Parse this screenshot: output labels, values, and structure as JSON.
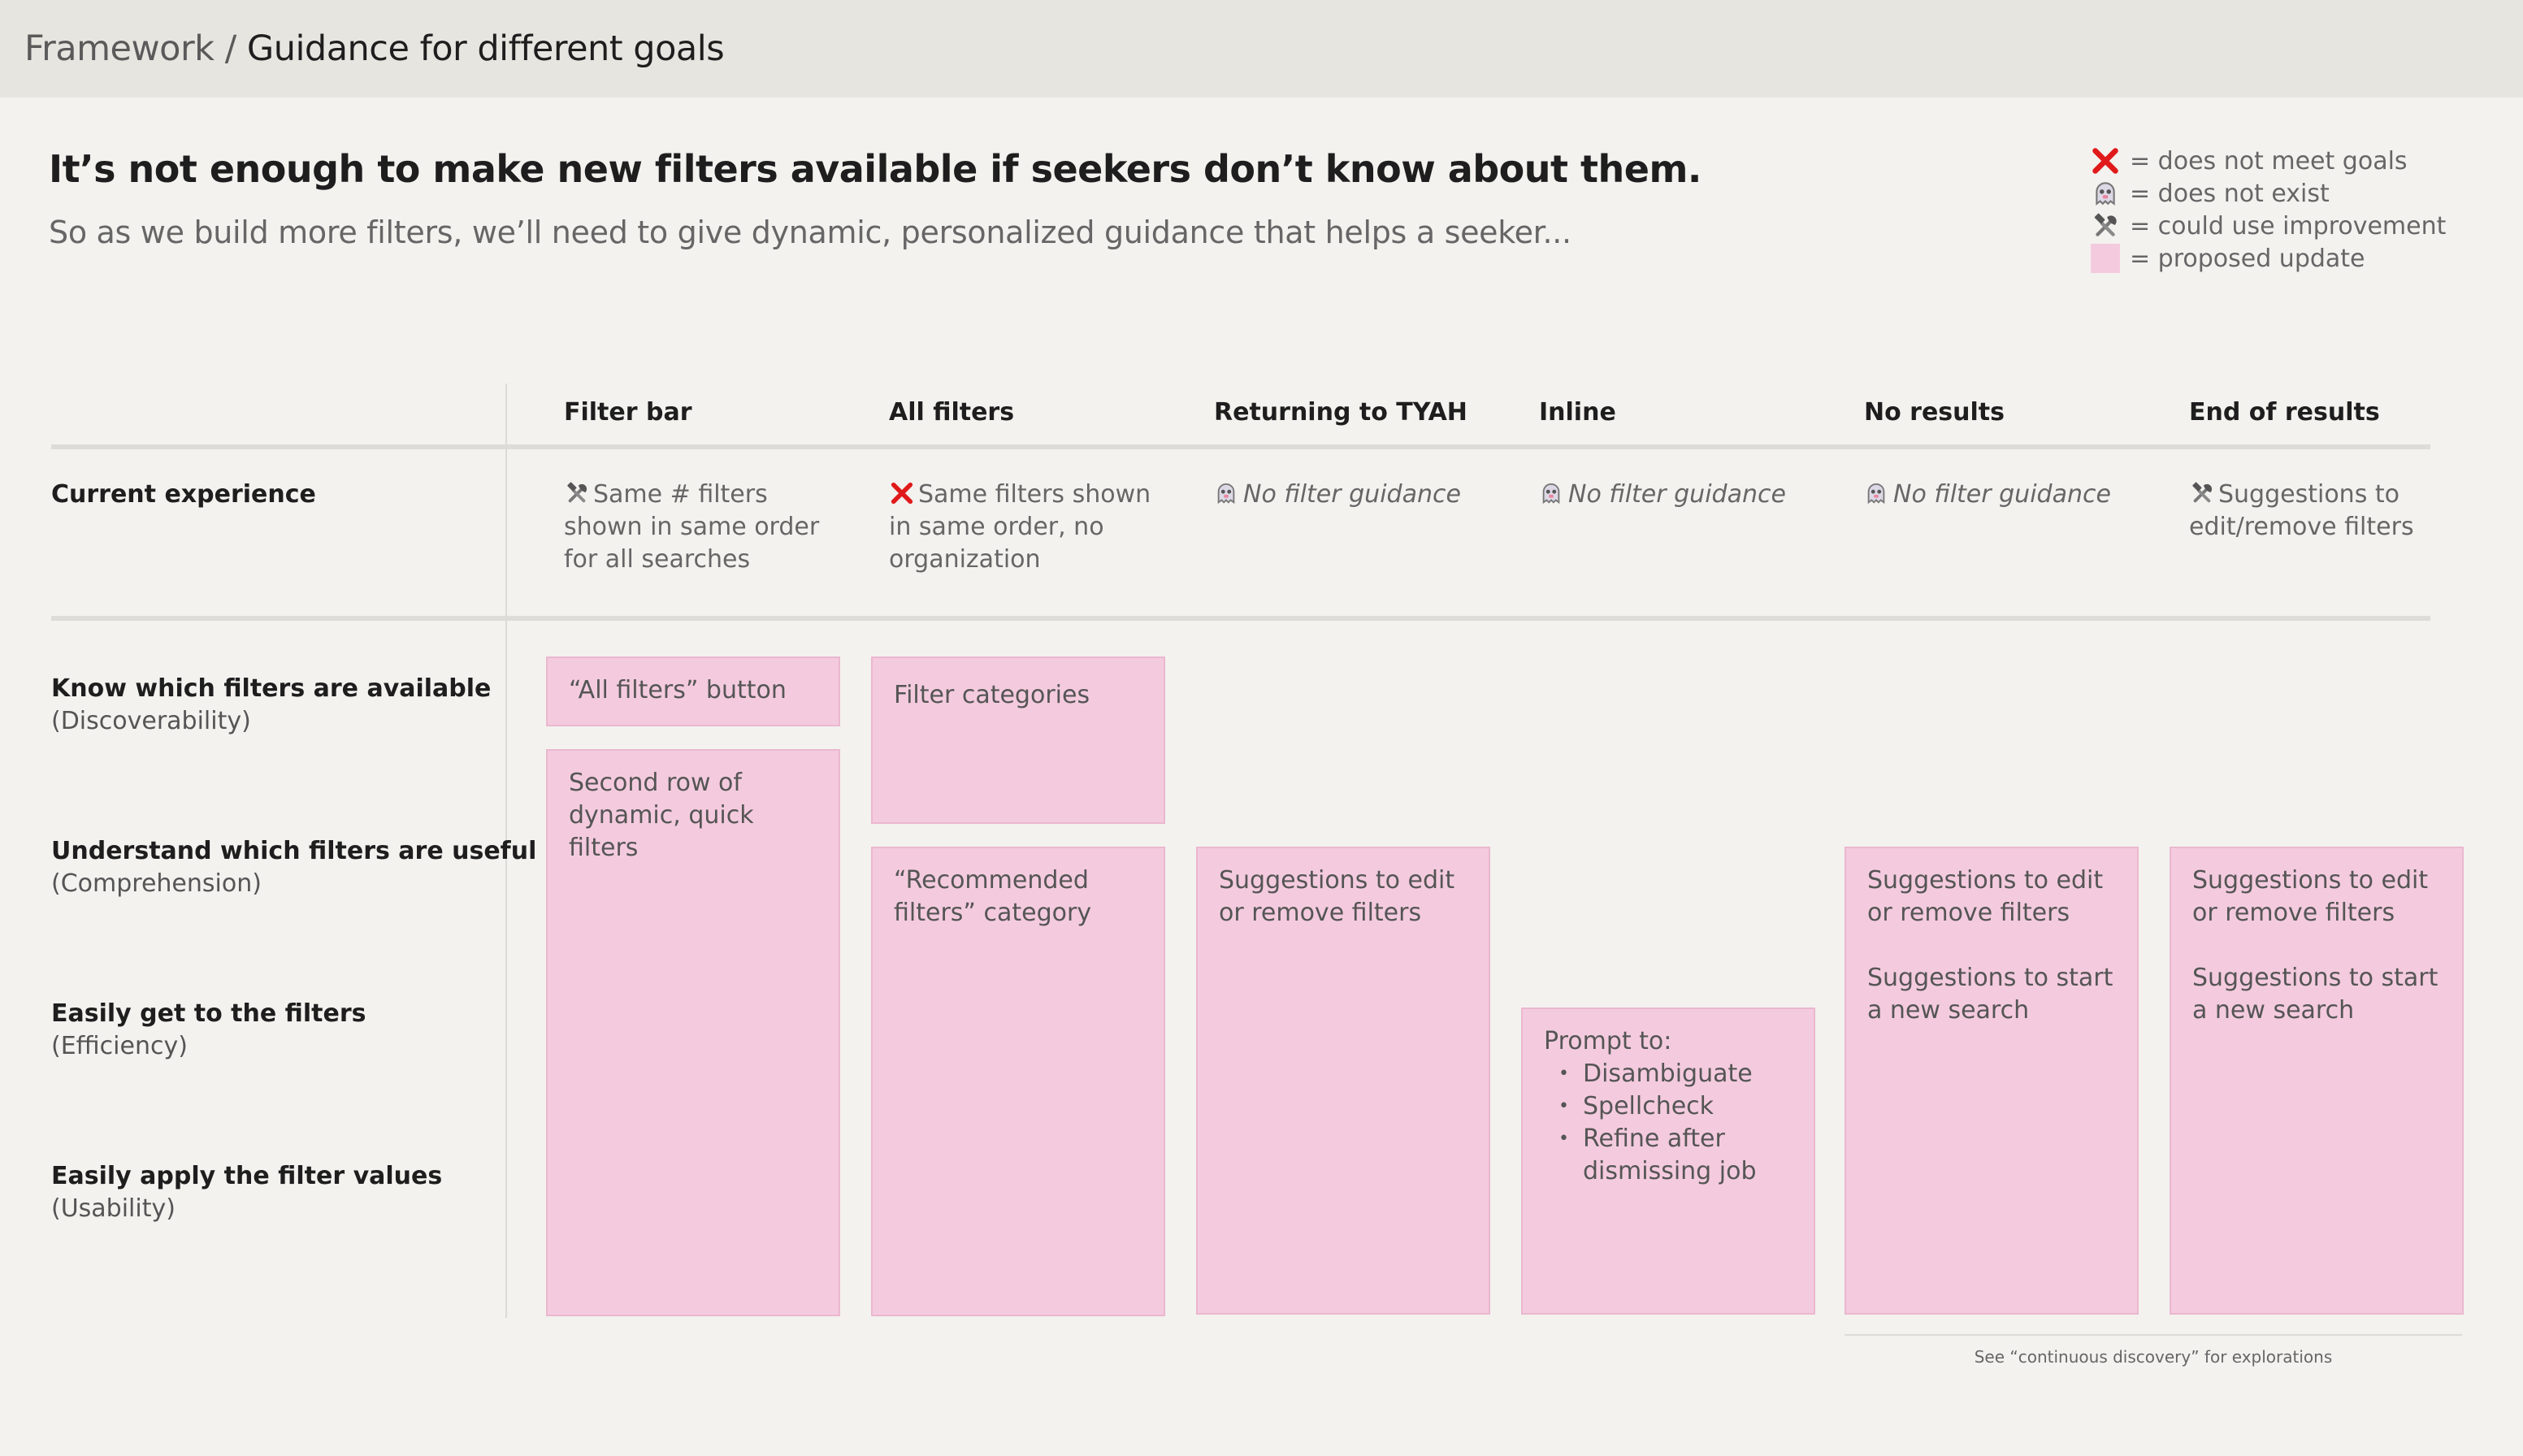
{
  "breadcrumb": {
    "parent": "Framework",
    "separator": "/",
    "current": "Guidance for different goals"
  },
  "headline": "It’s not enough to make new filters available if seekers don’t know about them.",
  "subhead": "So as we build more filters, we’ll need to give dynamic, personalized guidance that helps a seeker...",
  "legend": [
    {
      "icon": "x-mark-icon",
      "label": "= does not meet goals"
    },
    {
      "icon": "ghost-icon",
      "label": "= does not exist"
    },
    {
      "icon": "tools-icon",
      "label": "= could use improvement"
    },
    {
      "icon": "pink-swatch",
      "label": "= proposed update"
    }
  ],
  "columns": [
    "Filter bar",
    "All filters",
    "Returning to TYAH",
    "Inline",
    "No results",
    "End of results"
  ],
  "current_experience": {
    "label": "Current experience",
    "cells": [
      {
        "icon": "tools-icon",
        "text": "Same # filters shown in same order for all searches",
        "italic": false
      },
      {
        "icon": "x-mark-icon",
        "text": "Same filters shown in same order, no organization",
        "italic": false
      },
      {
        "icon": "ghost-icon",
        "text": "No filter guidance",
        "italic": true
      },
      {
        "icon": "ghost-icon",
        "text": "No filter guidance",
        "italic": true
      },
      {
        "icon": "ghost-icon",
        "text": "No filter guidance",
        "italic": true
      },
      {
        "icon": "tools-icon",
        "text": "Suggestions to edit/remove filters",
        "italic": false
      }
    ]
  },
  "goals": [
    {
      "title": "Know which filters are available",
      "sub": "(Discoverability)"
    },
    {
      "title": "Understand which filters are useful",
      "sub": "(Comprehension)"
    },
    {
      "title": "Easily get to the filters",
      "sub": "(Efficiency)"
    },
    {
      "title": "Easily apply the filter values",
      "sub": "(Usability)"
    }
  ],
  "cards": {
    "all_filters_button": "“All filters” button",
    "second_row": "Second row of dynamic, quick filters",
    "filter_categories": "Filter categories",
    "recommended": "“Recommended filters” category",
    "tyah_suggestions": "Suggestions to edit or remove filters",
    "inline_prompt": "Prompt to:",
    "inline_items": [
      "Disambiguate",
      "Spellcheck",
      "Refine after dismissing job"
    ],
    "no_results": [
      "Suggestions to edit or remove filters",
      "Suggestions to start a new search"
    ],
    "end_results": [
      "Suggestions to edit or remove filters",
      "Suggestions to start a new search"
    ]
  },
  "footnote": "See “continuous discovery” for explorations",
  "colors": {
    "proposed": "#f4cbde",
    "x_mark": "#e01a1a",
    "background": "#f3f2ef",
    "topbar": "#e7e5e0"
  }
}
